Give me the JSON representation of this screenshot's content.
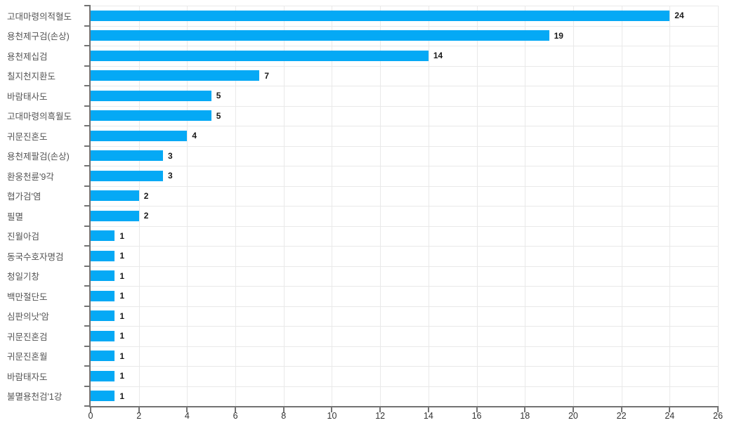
{
  "chart_data": {
    "type": "bar",
    "orientation": "horizontal",
    "title": "",
    "xlabel": "",
    "ylabel": "",
    "categories": [
      "고대마령의적혈도",
      "용천제구검(손상)",
      "용천제십검",
      "칠지천지환도",
      "바람태사도",
      "고대마령의흑월도",
      "귀문진혼도",
      "용천제팔검(손상)",
      "환웅천륜'9각",
      "협가검'염",
      "필멸",
      "진월아검",
      "동국수호자명검",
      "청일기창",
      "백만절단도",
      "심판의낫'암",
      "귀문진혼검",
      "귀문진혼월",
      "바람태자도",
      "불멸용천검'1강"
    ],
    "values": [
      24,
      19,
      14,
      7,
      5,
      5,
      4,
      3,
      3,
      2,
      2,
      1,
      1,
      1,
      1,
      1,
      1,
      1,
      1,
      1
    ],
    "data_labels_shown": true,
    "xlim": [
      0,
      26
    ],
    "xticks": [
      0,
      2,
      4,
      6,
      8,
      10,
      12,
      14,
      16,
      18,
      20,
      22,
      24,
      26
    ],
    "grid": true,
    "legend": "none",
    "colors": {
      "bar": "#05a9f5",
      "gridline": "#e9e9e9",
      "axis_line": "#737373",
      "category_label_text": "#545454",
      "tick_label_text": "#333333",
      "value_label_text": "#1a1a1a",
      "background": "#ffffff"
    }
  }
}
